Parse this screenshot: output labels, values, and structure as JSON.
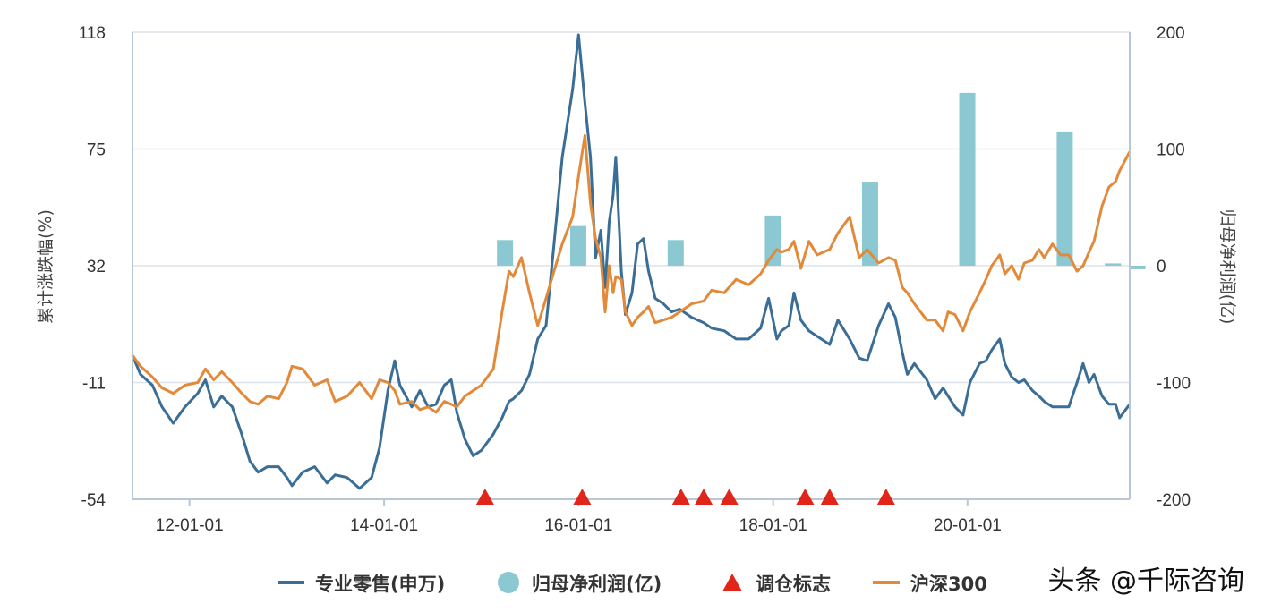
{
  "chart_data": {
    "type": "line",
    "x_type": "date",
    "x_range": [
      "2011-06-01",
      "2021-09-01"
    ],
    "x_ticks": [
      "2012-01-01",
      "2014-01-01",
      "2016-01-01",
      "2018-01-01",
      "2020-01-01"
    ],
    "x_tick_labels": [
      "12-01-01",
      "14-01-01",
      "16-01-01",
      "18-01-01",
      "20-01-01"
    ],
    "y_left": {
      "label": "累计涨跌幅(%)",
      "range": [
        -54,
        118
      ],
      "ticks": [
        118,
        75,
        32,
        -11,
        -54
      ]
    },
    "y_right": {
      "label": "归母净利润(亿)",
      "range": [
        -200,
        200
      ],
      "ticks": [
        200,
        100,
        0,
        -100,
        -200
      ]
    },
    "grid": true,
    "legend_position": "bottom",
    "series": [
      {
        "name": "专业零售(申万)",
        "type": "line",
        "axis": "left",
        "color": "#3b6e96",
        "points": [
          [
            "2011-06-01",
            -1
          ],
          [
            "2011-07-01",
            -8
          ],
          [
            "2011-08-15",
            -12
          ],
          [
            "2011-09-20",
            -20
          ],
          [
            "2011-11-01",
            -26
          ],
          [
            "2011-12-15",
            -20
          ],
          [
            "2012-02-01",
            -15
          ],
          [
            "2012-03-01",
            -10
          ],
          [
            "2012-04-01",
            -20
          ],
          [
            "2012-05-01",
            -16
          ],
          [
            "2012-06-10",
            -20
          ],
          [
            "2012-07-15",
            -30
          ],
          [
            "2012-08-15",
            -40
          ],
          [
            "2012-09-15",
            -44
          ],
          [
            "2012-10-20",
            -42
          ],
          [
            "2012-12-01",
            -42
          ],
          [
            "2013-01-01",
            -46
          ],
          [
            "2013-01-20",
            -49
          ],
          [
            "2013-03-01",
            -44
          ],
          [
            "2013-04-15",
            -42
          ],
          [
            "2013-06-01",
            -48
          ],
          [
            "2013-07-01",
            -45
          ],
          [
            "2013-08-15",
            -46
          ],
          [
            "2013-10-01",
            -50
          ],
          [
            "2013-11-15",
            -46
          ],
          [
            "2013-12-15",
            -35
          ],
          [
            "2014-01-15",
            -14
          ],
          [
            "2014-02-10",
            -3
          ],
          [
            "2014-03-01",
            -12
          ],
          [
            "2014-04-15",
            -20
          ],
          [
            "2014-05-15",
            -14
          ],
          [
            "2014-06-15",
            -20
          ],
          [
            "2014-07-15",
            -19
          ],
          [
            "2014-08-15",
            -12
          ],
          [
            "2014-09-10",
            -10
          ],
          [
            "2014-10-01",
            -22
          ],
          [
            "2014-11-01",
            -32
          ],
          [
            "2014-12-01",
            -38
          ],
          [
            "2015-01-01",
            -36
          ],
          [
            "2015-02-15",
            -30
          ],
          [
            "2015-03-20",
            -24
          ],
          [
            "2015-04-15",
            -18
          ],
          [
            "2015-05-01",
            -17
          ],
          [
            "2015-06-01",
            -14
          ],
          [
            "2015-07-01",
            -8
          ],
          [
            "2015-08-01",
            5
          ],
          [
            "2015-09-01",
            10
          ],
          [
            "2015-10-01",
            40
          ],
          [
            "2015-11-01",
            72
          ],
          [
            "2015-12-10",
            97
          ],
          [
            "2016-01-01",
            117
          ],
          [
            "2016-01-25",
            92
          ],
          [
            "2016-02-15",
            72
          ],
          [
            "2016-03-05",
            35
          ],
          [
            "2016-03-25",
            45
          ],
          [
            "2016-04-10",
            24
          ],
          [
            "2016-04-25",
            48
          ],
          [
            "2016-05-10",
            58
          ],
          [
            "2016-05-20",
            72
          ],
          [
            "2016-06-10",
            30
          ],
          [
            "2016-06-25",
            14
          ],
          [
            "2016-07-20",
            22
          ],
          [
            "2016-08-10",
            40
          ],
          [
            "2016-09-01",
            42
          ],
          [
            "2016-09-20",
            30
          ],
          [
            "2016-10-15",
            20
          ],
          [
            "2016-11-15",
            18
          ],
          [
            "2016-12-15",
            15
          ],
          [
            "2017-01-15",
            16
          ],
          [
            "2017-03-01",
            13
          ],
          [
            "2017-04-15",
            11
          ],
          [
            "2017-05-15",
            9
          ],
          [
            "2017-07-01",
            8
          ],
          [
            "2017-08-15",
            5
          ],
          [
            "2017-10-01",
            5
          ],
          [
            "2017-11-15",
            9
          ],
          [
            "2017-12-15",
            20
          ],
          [
            "2018-01-15",
            5
          ],
          [
            "2018-02-01",
            8
          ],
          [
            "2018-03-01",
            10
          ],
          [
            "2018-03-20",
            22
          ],
          [
            "2018-04-15",
            12
          ],
          [
            "2018-05-15",
            8
          ],
          [
            "2018-06-15",
            6
          ],
          [
            "2018-08-01",
            3
          ],
          [
            "2018-09-01",
            12
          ],
          [
            "2018-10-15",
            5
          ],
          [
            "2018-11-20",
            -2
          ],
          [
            "2018-12-20",
            -3
          ],
          [
            "2019-02-01",
            10
          ],
          [
            "2019-03-10",
            18
          ],
          [
            "2019-04-05",
            13
          ],
          [
            "2019-05-01",
            0
          ],
          [
            "2019-05-20",
            -8
          ],
          [
            "2019-06-15",
            -4
          ],
          [
            "2019-08-01",
            -10
          ],
          [
            "2019-09-01",
            -17
          ],
          [
            "2019-10-01",
            -13
          ],
          [
            "2019-10-20",
            -16
          ],
          [
            "2019-11-15",
            -20
          ],
          [
            "2019-12-15",
            -23
          ],
          [
            "2020-01-10",
            -11
          ],
          [
            "2020-02-15",
            -4
          ],
          [
            "2020-03-10",
            -3
          ],
          [
            "2020-04-01",
            1
          ],
          [
            "2020-05-01",
            5
          ],
          [
            "2020-05-20",
            -4
          ],
          [
            "2020-06-15",
            -9
          ],
          [
            "2020-07-10",
            -11
          ],
          [
            "2020-08-01",
            -10
          ],
          [
            "2020-09-01",
            -14
          ],
          [
            "2020-09-25",
            -16
          ],
          [
            "2020-10-15",
            -18
          ],
          [
            "2020-11-15",
            -20
          ],
          [
            "2020-12-15",
            -20
          ],
          [
            "2021-01-15",
            -20
          ],
          [
            "2021-02-15",
            -11
          ],
          [
            "2021-03-10",
            -4
          ],
          [
            "2021-04-01",
            -11
          ],
          [
            "2021-04-20",
            -8
          ],
          [
            "2021-05-20",
            -16
          ],
          [
            "2021-06-15",
            -19
          ],
          [
            "2021-07-10",
            -19
          ],
          [
            "2021-07-25",
            -24
          ],
          [
            "2021-09-01",
            -19
          ]
        ]
      },
      {
        "name": "沪深300",
        "type": "line",
        "axis": "left",
        "color": "#e2893a",
        "points": [
          [
            "2011-06-01",
            -1
          ],
          [
            "2011-07-01",
            -5
          ],
          [
            "2011-08-15",
            -9
          ],
          [
            "2011-09-20",
            -13
          ],
          [
            "2011-11-01",
            -15
          ],
          [
            "2011-12-15",
            -12
          ],
          [
            "2012-02-01",
            -11
          ],
          [
            "2012-03-01",
            -6
          ],
          [
            "2012-04-01",
            -10
          ],
          [
            "2012-05-01",
            -7
          ],
          [
            "2012-06-10",
            -11
          ],
          [
            "2012-07-15",
            -15
          ],
          [
            "2012-08-15",
            -18
          ],
          [
            "2012-09-15",
            -19
          ],
          [
            "2012-10-20",
            -16
          ],
          [
            "2012-12-01",
            -17
          ],
          [
            "2013-01-01",
            -11
          ],
          [
            "2013-01-20",
            -5
          ],
          [
            "2013-03-01",
            -6
          ],
          [
            "2013-04-15",
            -12
          ],
          [
            "2013-06-01",
            -10
          ],
          [
            "2013-07-01",
            -18
          ],
          [
            "2013-08-15",
            -16
          ],
          [
            "2013-10-01",
            -11
          ],
          [
            "2013-11-15",
            -17
          ],
          [
            "2013-12-15",
            -10
          ],
          [
            "2014-01-15",
            -11
          ],
          [
            "2014-02-10",
            -14
          ],
          [
            "2014-03-01",
            -19
          ],
          [
            "2014-04-15",
            -18
          ],
          [
            "2014-05-15",
            -21
          ],
          [
            "2014-06-15",
            -20
          ],
          [
            "2014-07-15",
            -22
          ],
          [
            "2014-08-15",
            -18
          ],
          [
            "2014-09-10",
            -19
          ],
          [
            "2014-10-01",
            -20
          ],
          [
            "2014-11-01",
            -16
          ],
          [
            "2014-12-01",
            -14
          ],
          [
            "2015-01-01",
            -12
          ],
          [
            "2015-02-15",
            -6
          ],
          [
            "2015-03-20",
            15
          ],
          [
            "2015-04-15",
            30
          ],
          [
            "2015-05-01",
            28
          ],
          [
            "2015-06-01",
            35
          ],
          [
            "2015-07-01",
            22
          ],
          [
            "2015-08-01",
            10
          ],
          [
            "2015-09-01",
            20
          ],
          [
            "2015-10-01",
            30
          ],
          [
            "2015-11-01",
            40
          ],
          [
            "2015-12-10",
            50
          ],
          [
            "2016-01-01",
            65
          ],
          [
            "2016-01-25",
            80
          ],
          [
            "2016-02-15",
            55
          ],
          [
            "2016-03-05",
            42
          ],
          [
            "2016-03-25",
            35
          ],
          [
            "2016-04-10",
            15
          ],
          [
            "2016-04-25",
            32
          ],
          [
            "2016-05-10",
            22
          ],
          [
            "2016-05-20",
            28
          ],
          [
            "2016-06-10",
            27
          ],
          [
            "2016-06-25",
            15
          ],
          [
            "2016-07-20",
            10
          ],
          [
            "2016-08-10",
            13
          ],
          [
            "2016-09-01",
            15
          ],
          [
            "2016-09-20",
            17
          ],
          [
            "2016-10-15",
            11
          ],
          [
            "2016-11-15",
            12
          ],
          [
            "2016-12-15",
            13
          ],
          [
            "2017-01-15",
            15
          ],
          [
            "2017-03-01",
            18
          ],
          [
            "2017-04-15",
            19
          ],
          [
            "2017-05-15",
            23
          ],
          [
            "2017-07-01",
            22
          ],
          [
            "2017-08-15",
            27
          ],
          [
            "2017-10-01",
            25
          ],
          [
            "2017-11-15",
            29
          ],
          [
            "2017-12-15",
            34
          ],
          [
            "2018-01-15",
            38
          ],
          [
            "2018-02-01",
            37
          ],
          [
            "2018-03-01",
            38
          ],
          [
            "2018-03-20",
            41
          ],
          [
            "2018-04-15",
            31
          ],
          [
            "2018-05-15",
            41
          ],
          [
            "2018-06-15",
            36
          ],
          [
            "2018-08-01",
            38
          ],
          [
            "2018-09-01",
            44
          ],
          [
            "2018-10-15",
            50
          ],
          [
            "2018-11-20",
            35
          ],
          [
            "2018-12-20",
            38
          ],
          [
            "2019-02-01",
            33
          ],
          [
            "2019-03-10",
            35
          ],
          [
            "2019-04-05",
            34
          ],
          [
            "2019-05-01",
            24
          ],
          [
            "2019-05-20",
            22
          ],
          [
            "2019-06-15",
            18
          ],
          [
            "2019-08-01",
            12
          ],
          [
            "2019-09-01",
            12
          ],
          [
            "2019-10-01",
            8
          ],
          [
            "2019-10-20",
            15
          ],
          [
            "2019-11-15",
            14
          ],
          [
            "2019-12-15",
            8
          ],
          [
            "2020-01-10",
            15
          ],
          [
            "2020-02-15",
            22
          ],
          [
            "2020-03-10",
            27
          ],
          [
            "2020-04-01",
            32
          ],
          [
            "2020-05-01",
            36
          ],
          [
            "2020-05-20",
            29
          ],
          [
            "2020-06-15",
            32
          ],
          [
            "2020-07-10",
            27
          ],
          [
            "2020-08-01",
            33
          ],
          [
            "2020-09-01",
            34
          ],
          [
            "2020-09-25",
            38
          ],
          [
            "2020-10-15",
            35
          ],
          [
            "2020-11-15",
            40
          ],
          [
            "2020-12-15",
            36
          ],
          [
            "2021-01-15",
            36
          ],
          [
            "2021-02-15",
            30
          ],
          [
            "2021-03-10",
            32
          ],
          [
            "2021-04-01",
            37
          ],
          [
            "2021-04-20",
            41
          ],
          [
            "2021-05-20",
            54
          ],
          [
            "2021-06-15",
            61
          ],
          [
            "2021-07-10",
            63
          ],
          [
            "2021-07-25",
            67
          ],
          [
            "2021-09-01",
            74
          ]
        ]
      }
    ],
    "bars": {
      "name": "归母净利润(亿)",
      "axis": "right",
      "color": "#8cc8d1",
      "x": [
        "2015-03-31",
        "2015-12-31",
        "2016-12-31",
        "2017-12-31",
        "2018-12-31",
        "2019-12-31",
        "2020-12-31",
        "2021-06-30",
        "2021-09-30"
      ],
      "values": [
        22,
        34,
        22,
        43,
        72,
        148,
        115,
        2,
        -3
      ]
    },
    "markers": {
      "name": "调仓标志",
      "symbol": "triangle",
      "color": "#e1251b",
      "x": [
        "2015-01-15",
        "2016-01-15",
        "2017-01-20",
        "2017-04-15",
        "2017-07-20",
        "2018-05-01",
        "2018-08-01",
        "2019-03-01"
      ]
    },
    "legend": [
      {
        "label": "专业零售(申万)",
        "shape": "line",
        "color": "#3b6e96"
      },
      {
        "label": "归母净利润(亿)",
        "shape": "circle",
        "color": "#8cc8d1"
      },
      {
        "label": "调仓标志",
        "shape": "triangle",
        "color": "#e1251b"
      },
      {
        "label": "沪深300",
        "shape": "line",
        "color": "#e2893a"
      }
    ]
  },
  "watermark": "头条 @千际咨询"
}
